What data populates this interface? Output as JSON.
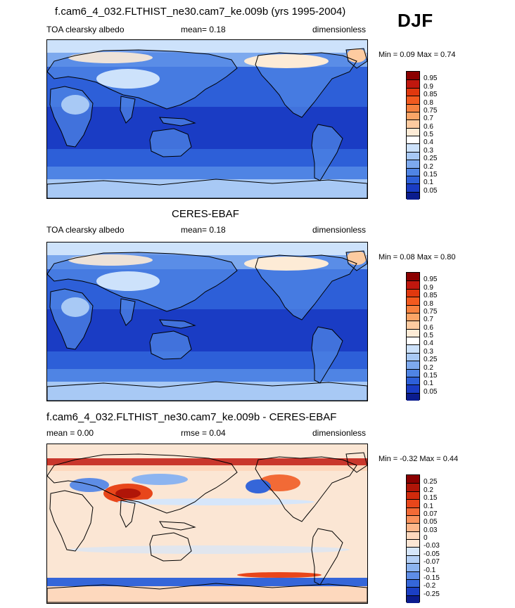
{
  "season": "DJF",
  "panels": [
    {
      "title": "f.cam6_4_032.FLTHIST_ne30.cam7_ke.009b (yrs 1995-2004)",
      "left_label": "TOA clearsky albedo",
      "center_label": "mean=  0.18",
      "right_label": "dimensionless",
      "minmax": "Min =  0.09 Max =  0.74",
      "min": 0.09,
      "max": 0.74,
      "mean": 0.18,
      "colorbar_labels": [
        "0.95",
        "0.9",
        "0.85",
        "0.8",
        "0.75",
        "0.7",
        "0.6",
        "0.5",
        "0.4",
        "0.3",
        "0.25",
        "0.2",
        "0.15",
        "0.1",
        "0.05"
      ],
      "colorbar_colors": [
        "#8b0000",
        "#c0170e",
        "#e0380e",
        "#f25a1f",
        "#f7813f",
        "#fba567",
        "#fdcba0",
        "#fdebd6",
        "#ffffff",
        "#cde2fb",
        "#a8c9f5",
        "#7da9ee",
        "#4f84e4",
        "#2d5fd8",
        "#1a3cc4",
        "#0b1c8e"
      ],
      "map_type": "absolute"
    },
    {
      "title": "CERES-EBAF",
      "left_label": "TOA clearsky albedo",
      "center_label": "mean=  0.18",
      "right_label": "dimensionless",
      "minmax": "Min =  0.08 Max =  0.80",
      "min": 0.08,
      "max": 0.8,
      "mean": 0.18,
      "colorbar_labels": [
        "0.95",
        "0.9",
        "0.85",
        "0.8",
        "0.75",
        "0.7",
        "0.6",
        "0.5",
        "0.4",
        "0.3",
        "0.25",
        "0.2",
        "0.15",
        "0.1",
        "0.05"
      ],
      "colorbar_colors": [
        "#8b0000",
        "#c0170e",
        "#e0380e",
        "#f25a1f",
        "#f7813f",
        "#fba567",
        "#fdcba0",
        "#fdebd6",
        "#ffffff",
        "#cde2fb",
        "#a8c9f5",
        "#7da9ee",
        "#4f84e4",
        "#2d5fd8",
        "#1a3cc4",
        "#0b1c8e"
      ],
      "map_type": "absolute"
    },
    {
      "title": "f.cam6_4_032.FLTHIST_ne30.cam7_ke.009b - CERES-EBAF",
      "left_label": "mean =   0.00",
      "center_label": "rmse =   0.04",
      "right_label": "dimensionless",
      "minmax": "Min =  -0.32 Max =   0.44",
      "min": -0.32,
      "max": 0.44,
      "mean": 0.0,
      "rmse": 0.04,
      "colorbar_labels": [
        "0.25",
        "0.2",
        "0.15",
        "0.1",
        "0.07",
        "0.05",
        "0.03",
        "0",
        "-0.03",
        "-0.05",
        "-0.07",
        "-0.1",
        "-0.15",
        "-0.2",
        "-0.25"
      ],
      "colorbar_colors": [
        "#8b0000",
        "#b01508",
        "#d02a0c",
        "#e8461a",
        "#f26a36",
        "#f9915c",
        "#fcb68a",
        "#fdd8bd",
        "#fbe6d4",
        "#d6e6fa",
        "#b5d0f6",
        "#8cb4f0",
        "#5e8de6",
        "#3566d9",
        "#1b3fc4",
        "#0b1c8e"
      ],
      "map_type": "difference"
    }
  ]
}
